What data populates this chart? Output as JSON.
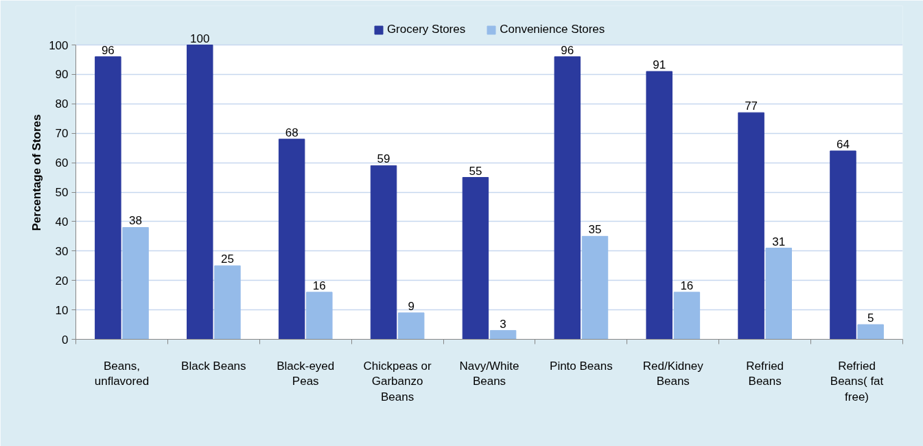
{
  "chart_data": {
    "type": "bar",
    "ylabel": "Percentage of Stores",
    "categories": [
      "Beans, unflavored",
      "Black Beans",
      "Black-eyed Peas",
      "Chickpeas or Garbanzo Beans",
      "Navy/White Beans",
      "Pinto Beans",
      "Red/Kidney Beans",
      "Refried Beans",
      "Refried Beans( fat free)"
    ],
    "series": [
      {
        "name": "Grocery Stores",
        "color": "#2b3a9e",
        "values": [
          96,
          100,
          68,
          59,
          55,
          96,
          91,
          77,
          64
        ]
      },
      {
        "name": "Convenience Stores",
        "color": "#95bbe9",
        "values": [
          38,
          25,
          16,
          9,
          3,
          35,
          16,
          31,
          5
        ]
      }
    ],
    "ylim": [
      0,
      100
    ],
    "yticks": [
      0,
      10,
      20,
      30,
      40,
      50,
      60,
      70,
      80,
      90,
      100
    ],
    "grid": "y",
    "legend": "top",
    "data_labels": true
  }
}
